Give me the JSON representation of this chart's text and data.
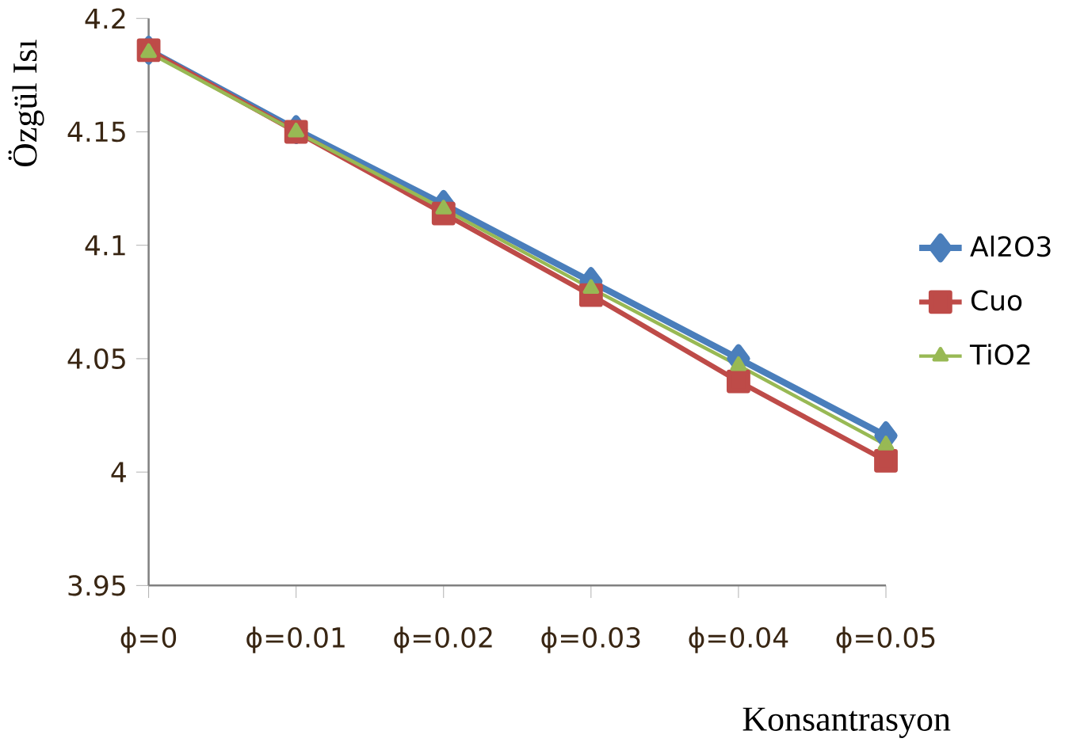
{
  "chart_data": {
    "type": "line",
    "xlabel": "Konsantrasyon",
    "ylabel": "Özgül Isı",
    "categories": [
      "ϕ=0",
      "ϕ=0.01",
      "ϕ=0.02",
      "ϕ=0.03",
      "ϕ=0.04",
      "ϕ=0.05"
    ],
    "series": [
      {
        "name": "Al2O3",
        "color": "#4a7ebb",
        "marker": "diamond",
        "values": [
          4.186,
          4.151,
          4.118,
          4.084,
          4.05,
          4.016
        ]
      },
      {
        "name": "Cuo",
        "color": "#be4b48",
        "marker": "square",
        "values": [
          4.186,
          4.15,
          4.114,
          4.078,
          4.04,
          4.005
        ]
      },
      {
        "name": "TiO2",
        "color": "#98b954",
        "marker": "triangle",
        "values": [
          4.185,
          4.15,
          4.116,
          4.081,
          4.047,
          4.012
        ]
      }
    ],
    "ylim": [
      3.95,
      4.2
    ],
    "yticks": [
      3.95,
      4,
      4.05,
      4.1,
      4.15,
      4.2
    ],
    "legend": "right",
    "grid": false
  }
}
